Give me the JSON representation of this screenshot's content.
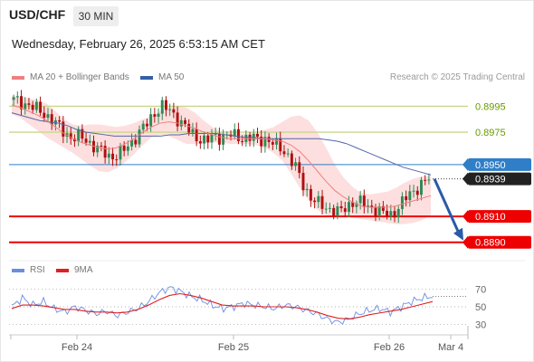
{
  "header": {
    "pair": "USD/CHF",
    "timeframe": "30 MIN",
    "datetime": "Wednesday, February 26, 2025 6:53:15 AM CET"
  },
  "legend": {
    "ma20": "MA 20 + Bollinger Bands",
    "ma50": "MA 50",
    "rsi": "RSI",
    "ma9": "9MA",
    "credit": "Research © 2025 Trading Central"
  },
  "colors": {
    "ma20": "#f08080",
    "bollinger_fill": "#fddcdc",
    "ma50": "#5566aa",
    "up_candle": "#2e8b57",
    "down_candle": "#b01010",
    "resistance": "#c8d88a",
    "pivot": "#2f7ec7",
    "support": "#ee0000",
    "rsi_line": "#6a8ee0",
    "rsi_ma": "#e02020",
    "arrow": "#2a5aa8",
    "current_label": "#222222"
  },
  "chart_data": [
    {
      "type": "candlestick",
      "title": "USD/CHF 30 MIN",
      "y_range": [
        0.888,
        0.901
      ],
      "x_ticks": [
        "Feb 24",
        "Feb 25",
        "Feb 26",
        "Mar 4"
      ],
      "current_price": 0.8939,
      "levels": [
        {
          "label": "0.8995",
          "value": 0.8995,
          "kind": "resistance"
        },
        {
          "label": "0.8975",
          "value": 0.8975,
          "kind": "resistance"
        },
        {
          "label": "0.8950",
          "value": 0.895,
          "kind": "pivot"
        },
        {
          "label": "0.8939",
          "value": 0.8939,
          "kind": "current"
        },
        {
          "label": "0.8910",
          "value": 0.891,
          "kind": "support"
        },
        {
          "label": "0.8890",
          "value": 0.889,
          "kind": "support"
        }
      ],
      "close_path": [
        0.9,
        0.8998,
        0.8996,
        0.8993,
        0.899,
        0.8985,
        0.898,
        0.8974,
        0.897,
        0.8972,
        0.8968,
        0.8963,
        0.896,
        0.8956,
        0.8957,
        0.8962,
        0.8968,
        0.8975,
        0.8982,
        0.899,
        0.8995,
        0.8992,
        0.8986,
        0.898,
        0.8974,
        0.897,
        0.8968,
        0.8972,
        0.8971,
        0.8973,
        0.8972,
        0.897,
        0.8971,
        0.8969,
        0.897,
        0.8966,
        0.8963,
        0.8957,
        0.8948,
        0.8935,
        0.8925,
        0.892,
        0.8917,
        0.8915,
        0.8913,
        0.8918,
        0.8922,
        0.892,
        0.8917,
        0.8915,
        0.8912,
        0.8911,
        0.8918,
        0.8925,
        0.893,
        0.8935,
        0.8939
      ],
      "ma50_path": [
        0.899,
        0.8988,
        0.8986,
        0.8984,
        0.8983,
        0.8982,
        0.898,
        0.8977,
        0.8975,
        0.8974,
        0.8973,
        0.8972,
        0.8972,
        0.8972,
        0.8972,
        0.8972,
        0.8972,
        0.8973,
        0.8973,
        0.8974,
        0.8974,
        0.8974,
        0.8974,
        0.8973,
        0.8972,
        0.8971,
        0.8971,
        0.897,
        0.897,
        0.897,
        0.897,
        0.897,
        0.897,
        0.897,
        0.8969,
        0.8968,
        0.8966,
        0.8963,
        0.896,
        0.8957,
        0.8954,
        0.8951,
        0.8948,
        0.8946,
        0.8944,
        0.8942
      ],
      "ma20_path": [
        0.8996,
        0.8994,
        0.8991,
        0.8988,
        0.8984,
        0.8979,
        0.8974,
        0.897,
        0.8967,
        0.8965,
        0.8963,
        0.8962,
        0.8963,
        0.8966,
        0.897,
        0.8975,
        0.8979,
        0.8982,
        0.8983,
        0.8982,
        0.898,
        0.8978,
        0.8975,
        0.8973,
        0.8971,
        0.897,
        0.897,
        0.897,
        0.897,
        0.897,
        0.8969,
        0.8968,
        0.8965,
        0.896,
        0.8953,
        0.8945,
        0.8937,
        0.893,
        0.8925,
        0.8921,
        0.8918,
        0.8917,
        0.8917,
        0.8917,
        0.8918,
        0.892,
        0.8922,
        0.8924,
        0.8926
      ],
      "bollinger_half_width": [
        0.0007,
        0.0008,
        0.001,
        0.0012,
        0.0013,
        0.0012,
        0.0011,
        0.0011,
        0.0013,
        0.0016,
        0.0018,
        0.0018,
        0.0016,
        0.0014,
        0.0012,
        0.001,
        0.0008,
        0.0009,
        0.0011,
        0.0013,
        0.0014,
        0.0012,
        0.0009,
        0.0006,
        0.0004,
        0.0004,
        0.0004,
        0.0004,
        0.0005,
        0.0007,
        0.001,
        0.0015,
        0.0022,
        0.0028,
        0.0031,
        0.003,
        0.0026,
        0.002,
        0.0015,
        0.0012,
        0.001,
        0.001,
        0.0011,
        0.0012,
        0.0014,
        0.0016,
        0.0017,
        0.0017,
        0.0015
      ],
      "projection": {
        "from": 0.8939,
        "to": 0.889
      }
    },
    {
      "type": "line",
      "title": "RSI",
      "y_ticks": [
        70,
        50,
        30
      ],
      "y_range": [
        20,
        80
      ],
      "series": [
        {
          "name": "RSI",
          "values": [
            50,
            60,
            52,
            56,
            48,
            44,
            50,
            46,
            42,
            45,
            40,
            44,
            48,
            56,
            66,
            72,
            68,
            62,
            58,
            52,
            48,
            50,
            54,
            52,
            50,
            48,
            52,
            50,
            46,
            42,
            36,
            32,
            36,
            42,
            46,
            48,
            44,
            50,
            56,
            60,
            62
          ]
        },
        {
          "name": "9MA",
          "values": [
            48,
            52,
            52,
            51,
            49,
            47,
            47,
            45,
            44,
            44,
            43,
            44,
            47,
            52,
            58,
            63,
            65,
            63,
            60,
            56,
            52,
            51,
            51,
            51,
            50,
            50,
            50,
            49,
            47,
            44,
            40,
            37,
            36,
            38,
            41,
            43,
            45,
            47,
            50,
            53,
            56
          ]
        }
      ]
    }
  ]
}
